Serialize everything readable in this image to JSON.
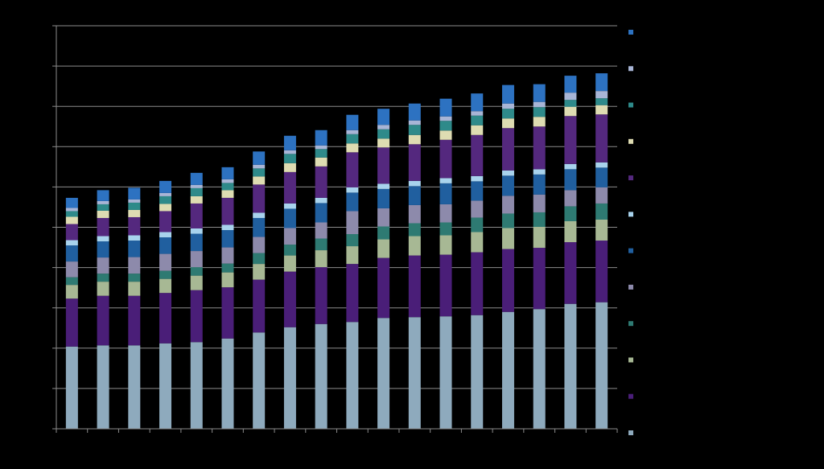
{
  "chart_data": {
    "type": "bar",
    "stacked": true,
    "title": "",
    "xlabel": "",
    "ylabel": "",
    "ylim": [
      0,
      10
    ],
    "grid": true,
    "legend": "right",
    "categories": [
      "",
      "",
      "",
      "",
      "",
      "",
      "",
      "",
      "",
      "",
      "",
      "",
      "",
      "",
      "",
      "",
      "",
      ""
    ],
    "series": [
      {
        "color": "#8eaabd",
        "values": [
          2.04,
          2.07,
          2.07,
          2.12,
          2.15,
          2.24,
          2.39,
          2.52,
          2.6,
          2.65,
          2.75,
          2.77,
          2.79,
          2.82,
          2.9,
          2.97,
          3.1,
          3.14
        ]
      },
      {
        "color": "#4a1e78",
        "values": [
          1.19,
          1.23,
          1.23,
          1.25,
          1.29,
          1.27,
          1.31,
          1.38,
          1.41,
          1.44,
          1.49,
          1.53,
          1.53,
          1.56,
          1.56,
          1.52,
          1.53,
          1.53
        ]
      },
      {
        "color": "#a7b894",
        "values": [
          0.34,
          0.35,
          0.35,
          0.35,
          0.36,
          0.37,
          0.39,
          0.4,
          0.42,
          0.44,
          0.46,
          0.48,
          0.48,
          0.5,
          0.52,
          0.52,
          0.52,
          0.52
        ]
      },
      {
        "color": "#2e7a72",
        "values": [
          0.19,
          0.2,
          0.2,
          0.2,
          0.21,
          0.22,
          0.27,
          0.27,
          0.29,
          0.3,
          0.32,
          0.32,
          0.32,
          0.36,
          0.36,
          0.36,
          0.37,
          0.4
        ]
      },
      {
        "color": "#8d8aab",
        "values": [
          0.39,
          0.4,
          0.41,
          0.42,
          0.4,
          0.4,
          0.4,
          0.41,
          0.4,
          0.57,
          0.45,
          0.45,
          0.45,
          0.42,
          0.44,
          0.44,
          0.4,
          0.4
        ]
      },
      {
        "color": "#205f9f",
        "values": [
          0.4,
          0.4,
          0.41,
          0.41,
          0.43,
          0.43,
          0.47,
          0.48,
          0.48,
          0.46,
          0.48,
          0.47,
          0.52,
          0.48,
          0.5,
          0.5,
          0.52,
          0.49
        ]
      },
      {
        "color": "#a8d3ed",
        "values": [
          0.13,
          0.13,
          0.13,
          0.13,
          0.13,
          0.13,
          0.13,
          0.13,
          0.13,
          0.13,
          0.13,
          0.13,
          0.13,
          0.13,
          0.13,
          0.13,
          0.13,
          0.13
        ]
      },
      {
        "color": "#54287e",
        "values": [
          0.4,
          0.45,
          0.45,
          0.52,
          0.62,
          0.67,
          0.7,
          0.78,
          0.78,
          0.87,
          0.9,
          0.91,
          0.95,
          1.02,
          1.05,
          1.06,
          1.19,
          1.19
        ]
      },
      {
        "color": "#dedcb2",
        "values": [
          0.18,
          0.18,
          0.18,
          0.18,
          0.18,
          0.19,
          0.2,
          0.22,
          0.22,
          0.22,
          0.22,
          0.23,
          0.23,
          0.24,
          0.24,
          0.24,
          0.23,
          0.23
        ]
      },
      {
        "color": "#2e8a8a",
        "values": [
          0.14,
          0.16,
          0.18,
          0.19,
          0.2,
          0.18,
          0.2,
          0.23,
          0.21,
          0.23,
          0.23,
          0.25,
          0.24,
          0.24,
          0.24,
          0.24,
          0.17,
          0.17
        ]
      },
      {
        "color": "#a8b5d6",
        "values": [
          0.08,
          0.08,
          0.08,
          0.08,
          0.08,
          0.09,
          0.09,
          0.09,
          0.09,
          0.1,
          0.11,
          0.11,
          0.11,
          0.11,
          0.13,
          0.13,
          0.18,
          0.18
        ]
      },
      {
        "color": "#2d72c1",
        "values": [
          0.25,
          0.27,
          0.29,
          0.3,
          0.3,
          0.3,
          0.33,
          0.36,
          0.38,
          0.38,
          0.4,
          0.42,
          0.44,
          0.44,
          0.46,
          0.44,
          0.42,
          0.44
        ]
      }
    ]
  }
}
